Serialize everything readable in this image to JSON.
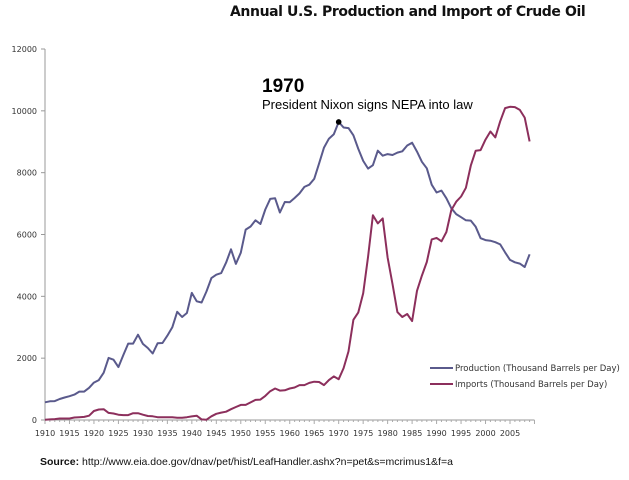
{
  "chart_data": {
    "type": "line",
    "title": "Annual U.S. Production and Import of Crude Oil",
    "xlabel": "",
    "ylabel": "",
    "xlim": [
      1910,
      2010
    ],
    "ylim": [
      0,
      12000
    ],
    "x_ticks": [
      1910,
      1915,
      1920,
      1925,
      1930,
      1935,
      1940,
      1945,
      1950,
      1955,
      1960,
      1965,
      1970,
      1975,
      1980,
      1985,
      1990,
      1995,
      2000,
      2005
    ],
    "y_ticks": [
      0,
      2000,
      4000,
      6000,
      8000,
      10000,
      12000
    ],
    "grid": false,
    "legend_position": "bottom-right",
    "x": [
      1910,
      1911,
      1912,
      1913,
      1914,
      1915,
      1916,
      1917,
      1918,
      1919,
      1920,
      1921,
      1922,
      1923,
      1924,
      1925,
      1926,
      1927,
      1928,
      1929,
      1930,
      1931,
      1932,
      1933,
      1934,
      1935,
      1936,
      1937,
      1938,
      1939,
      1940,
      1941,
      1942,
      1943,
      1944,
      1945,
      1946,
      1947,
      1948,
      1949,
      1950,
      1951,
      1952,
      1953,
      1954,
      1955,
      1956,
      1957,
      1958,
      1959,
      1960,
      1961,
      1962,
      1963,
      1964,
      1965,
      1966,
      1967,
      1968,
      1969,
      1970,
      1971,
      1972,
      1973,
      1974,
      1975,
      1976,
      1977,
      1978,
      1979,
      1980,
      1981,
      1982,
      1983,
      1984,
      1985,
      1986,
      1987,
      1988,
      1989,
      1990,
      1991,
      1992,
      1993,
      1994,
      1995,
      1996,
      1997,
      1998,
      1999,
      2000,
      2001,
      2002,
      2003,
      2004,
      2005,
      2006,
      2007,
      2008,
      2009
    ],
    "series": [
      {
        "name": "Production (Thousand Barrels per Day)",
        "color": "#5a5a8c",
        "values": [
          574,
          604,
          610,
          680,
          727,
          770,
          823,
          920,
          920,
          1040,
          1210,
          1290,
          1530,
          2010,
          1950,
          1710,
          2100,
          2470,
          2470,
          2760,
          2460,
          2330,
          2150,
          2480,
          2490,
          2730,
          3000,
          3500,
          3330,
          3460,
          4110,
          3840,
          3800,
          4160,
          4590,
          4700,
          4750,
          5090,
          5520,
          5050,
          5410,
          6160,
          6260,
          6460,
          6340,
          6810,
          7150,
          7170,
          6710,
          7050,
          7040,
          7180,
          7330,
          7540,
          7610,
          7800,
          8300,
          8810,
          9100,
          9240,
          9640,
          9460,
          9440,
          9210,
          8770,
          8380,
          8130,
          8240,
          8710,
          8550,
          8600,
          8570,
          8650,
          8690,
          8880,
          8970,
          8680,
          8350,
          8140,
          7610,
          7360,
          7420,
          7170,
          6850,
          6660,
          6560,
          6460,
          6450,
          6250,
          5880,
          5820,
          5800,
          5750,
          5680,
          5420,
          5180,
          5100,
          5060,
          4950,
          5360
        ]
      },
      {
        "name": "Imports (Thousand Barrels per Day)",
        "color": "#8c2f5c",
        "values": [
          10,
          20,
          30,
          50,
          50,
          50,
          80,
          90,
          100,
          140,
          290,
          340,
          350,
          230,
          210,
          170,
          160,
          160,
          220,
          220,
          170,
          130,
          120,
          90,
          90,
          90,
          90,
          75,
          70,
          90,
          115,
          140,
          20,
          10,
          120,
          200,
          240,
          270,
          350,
          420,
          490,
          490,
          570,
          650,
          660,
          780,
          930,
          1020,
          950,
          960,
          1020,
          1050,
          1130,
          1130,
          1200,
          1240,
          1230,
          1130,
          1290,
          1410,
          1320,
          1680,
          2220,
          3240,
          3480,
          4100,
          5290,
          6620,
          6360,
          6520,
          5260,
          4400,
          3490,
          3330,
          3430,
          3200,
          4180,
          4670,
          5110,
          5840,
          5890,
          5780,
          6080,
          6790,
          7060,
          7230,
          7510,
          8230,
          8710,
          8730,
          9070,
          9330,
          9140,
          9660,
          10090,
          10130,
          10120,
          10030,
          9780,
          9010
        ]
      }
    ],
    "annotations": [
      {
        "x": 1970,
        "y": 9640,
        "heading": "1970",
        "text": "President Nixon signs NEPA into law"
      }
    ]
  },
  "source": {
    "label": "Source:",
    "url": "http://www.eia.doe.gov/dnav/pet/hist/LeafHandler.ashx?n=pet&s=mcrimus1&f=a"
  }
}
